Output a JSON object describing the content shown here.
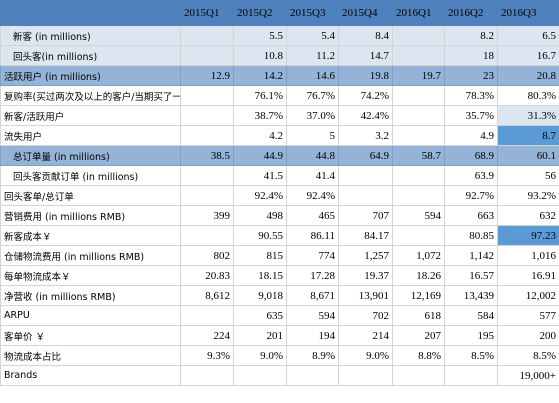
{
  "table": {
    "header": [
      null,
      "2015Q1",
      "2015Q2",
      "2015Q3",
      "2015Q4",
      "2016Q1",
      "2016Q2",
      "2016Q3"
    ],
    "rows": [
      [
        "新客 (in millions)",
        null,
        "5.5",
        "5.4",
        "8.4",
        null,
        "8.2",
        "6.5"
      ],
      [
        "回头客(in millions)",
        null,
        "10.8",
        "11.2",
        "14.7",
        null,
        "18",
        "16.7"
      ],
      [
        "活跃用户 (in millions)",
        "12.9",
        "14.2",
        "14.6",
        "19.8",
        "19.7",
        "23",
        "20.8"
      ],
      [
        "复购率(买过两次及以上的客户/当期买了一次及以上的客户)",
        null,
        "76.1%",
        "76.7%",
        "74.2%",
        null,
        "78.3%",
        "80.3%"
      ],
      [
        "新客/活跃用户",
        null,
        "38.7%",
        "37.0%",
        "42.4%",
        null,
        "35.7%",
        "31.3%"
      ],
      [
        "流失用户",
        null,
        "4.2",
        "5",
        "3.2",
        null,
        "4.9",
        "8.7"
      ],
      [
        "总订单量 (in millions)",
        "38.5",
        "44.9",
        "44.8",
        "64.9",
        "58.7",
        "68.9",
        "60.1"
      ],
      [
        "回头客贡献订单 (in millions)",
        null,
        "41.5",
        "41.4",
        null,
        null,
        "63.9",
        "56"
      ],
      [
        "回头客单/总订单",
        null,
        "92.4%",
        "92.4%",
        null,
        null,
        "92.7%",
        "93.2%"
      ],
      [
        "营销费用 (in millions RMB)",
        "399",
        "498",
        "465",
        "707",
        "594",
        "663",
        "632"
      ],
      [
        "新客成本￥",
        null,
        "90.55",
        "86.11",
        "84.17",
        null,
        "80.85",
        "97.23"
      ],
      [
        "仓储物流费用 (in millions RMB)",
        "802",
        "815",
        "774",
        "1,257",
        "1,072",
        "1,142",
        "1,016"
      ],
      [
        "每单物流成本￥",
        "20.83",
        "18.15",
        "17.28",
        "19.37",
        "18.26",
        "16.57",
        "16.91"
      ],
      [
        "净营收 (in millions RMB)",
        "8,612",
        "9,018",
        "8,671",
        "13,901",
        "12,169",
        "13,439",
        "12,002"
      ],
      [
        "ARPU",
        null,
        "635",
        "594",
        "702",
        "618",
        "584",
        "577"
      ],
      [
        "客单价 ￥",
        "224",
        "201",
        "194",
        "214",
        "207",
        "195",
        "200"
      ],
      [
        "物流成本占比",
        "9.3%",
        "9.0%",
        "8.9%",
        "9.0%",
        "8.8%",
        "8.5%",
        "8.5%"
      ],
      [
        "Brands",
        null,
        null,
        null,
        null,
        null,
        null,
        "19,000+"
      ]
    ]
  }
}
